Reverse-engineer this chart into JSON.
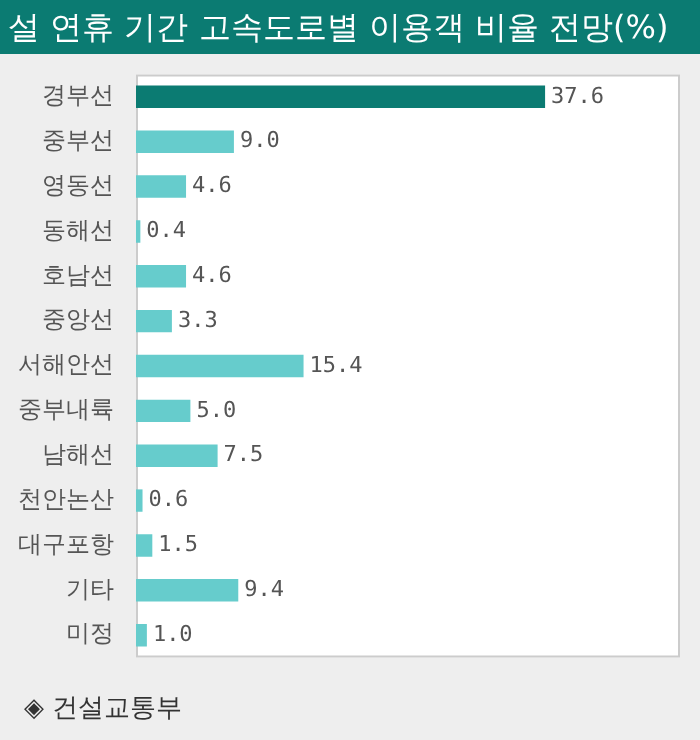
{
  "chart_data": {
    "type": "bar",
    "orientation": "horizontal",
    "title": "설 연휴 기간 고속도로별 이용객 비율 전망(%)",
    "categories": [
      "경부선",
      "중부선",
      "영동선",
      "동해선",
      "호남선",
      "중앙선",
      "서해안선",
      "중부내륙",
      "남해선",
      "천안논산",
      "대구포항",
      "기타",
      "미정"
    ],
    "values": [
      37.6,
      9.0,
      4.6,
      0.4,
      4.6,
      3.3,
      15.4,
      5.0,
      7.5,
      0.6,
      1.5,
      9.4,
      1.0
    ],
    "colors": [
      "#0b7b72",
      "#66cccc",
      "#66cccc",
      "#66cccc",
      "#66cccc",
      "#66cccc",
      "#66cccc",
      "#66cccc",
      "#66cccc",
      "#66cccc",
      "#66cccc",
      "#66cccc",
      "#66cccc"
    ],
    "value_labels": [
      "37.6",
      "9.0",
      "4.6",
      "0.4",
      "4.6",
      "3.3",
      "15.4",
      "5.0",
      "7.5",
      "0.6",
      "1.5",
      "9.4",
      "1.0"
    ],
    "grid": false,
    "legend": false,
    "annotations": [
      "◈ 건설교통부"
    ]
  }
}
